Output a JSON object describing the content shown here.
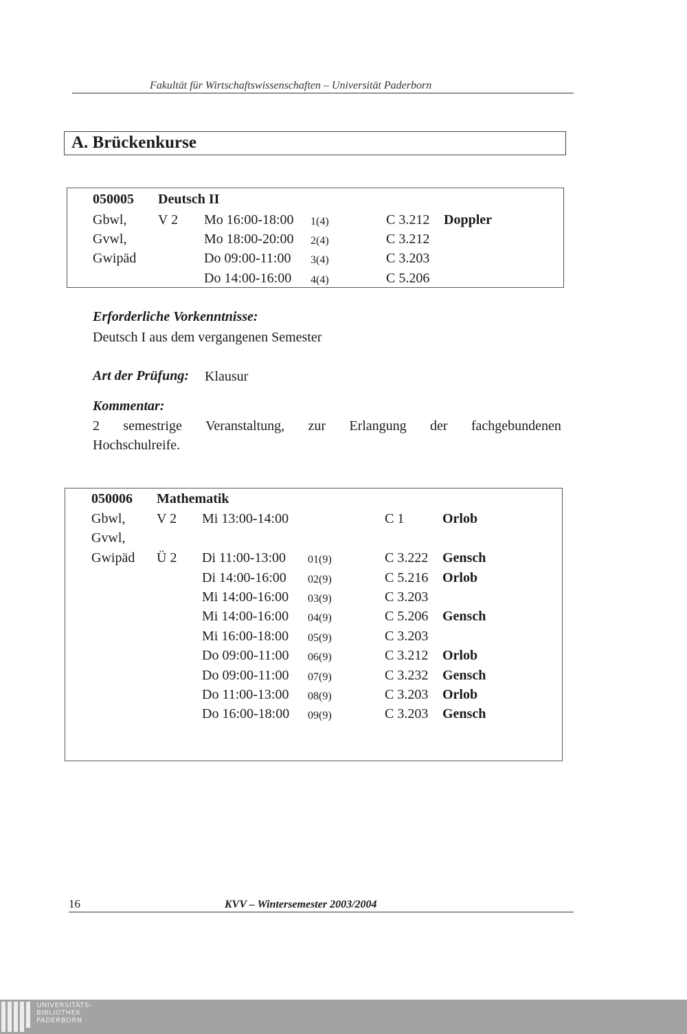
{
  "header": {
    "text": "Fakultät für Wirtschaftswissenschaften – Universität Paderborn"
  },
  "section": {
    "title": "A. Brückenkurse"
  },
  "course1": {
    "number": "050005",
    "title": "Deutsch II",
    "rows": [
      {
        "audience": "Gbwl,",
        "type": "V 2",
        "time": "Mo 16:00-18:00",
        "group": "1(4)",
        "room": "C 3.212",
        "lecturer": "Doppler"
      },
      {
        "audience": "Gvwl,",
        "type": "",
        "time": "Mo 18:00-20:00",
        "group": "2(4)",
        "room": "C 3.212",
        "lecturer": ""
      },
      {
        "audience": "Gwipäd",
        "type": "",
        "time": "Do 09:00-11:00",
        "group": "3(4)",
        "room": "C 3.203",
        "lecturer": ""
      },
      {
        "audience": "",
        "type": "",
        "time": "Do 14:00-16:00",
        "group": "4(4)",
        "room": "C 5.206",
        "lecturer": ""
      }
    ],
    "prereq_label": "Erforderliche Vorkenntnisse:",
    "prereq_text": "Deutsch I aus dem vergangenen Semester",
    "exam_label": "Art der Prüfung:",
    "exam_text": "Klausur",
    "comment_label": "Kommentar:",
    "comment_line1": [
      "2",
      "semestrige",
      "Veranstaltung,",
      "zur",
      "Erlangung",
      "der",
      "fachgebundenen"
    ],
    "comment_line2": "Hochschulreife."
  },
  "course2": {
    "number": "050006",
    "title": "Mathematik",
    "rows": [
      {
        "audience": "Gbwl,",
        "type": "V 2",
        "time": "Mi 13:00-14:00",
        "group": "",
        "room": "C 1",
        "lecturer": "Orlob"
      },
      {
        "audience": "Gvwl,",
        "type": "",
        "time": "",
        "group": "",
        "room": "",
        "lecturer": ""
      },
      {
        "audience": "Gwipäd",
        "type": "Ü 2",
        "time": "Di 11:00-13:00",
        "group": "01(9)",
        "room": "C 3.222",
        "lecturer": "Gensch"
      },
      {
        "audience": "",
        "type": "",
        "time": "Di 14:00-16:00",
        "group": "02(9)",
        "room": "C 5.216",
        "lecturer": "Orlob"
      },
      {
        "audience": "",
        "type": "",
        "time": "Mi 14:00-16:00",
        "group": "03(9)",
        "room": "C 3.203",
        "lecturer": ""
      },
      {
        "audience": "",
        "type": "",
        "time": "Mi 14:00-16:00",
        "group": "04(9)",
        "room": "C 5.206",
        "lecturer": "Gensch"
      },
      {
        "audience": "",
        "type": "",
        "time": "Mi 16:00-18:00",
        "group": "05(9)",
        "room": "C 3.203",
        "lecturer": ""
      },
      {
        "audience": "",
        "type": "",
        "time": "Do 09:00-11:00",
        "group": "06(9)",
        "room": "C 3.212",
        "lecturer": "Orlob"
      },
      {
        "audience": "",
        "type": "",
        "time": "Do 09:00-11:00",
        "group": "07(9)",
        "room": "C 3.232",
        "lecturer": "Gensch"
      },
      {
        "audience": "",
        "type": "",
        "time": "Do 11:00-13:00",
        "group": "08(9)",
        "room": "C 3.203",
        "lecturer": "Orlob"
      },
      {
        "audience": "",
        "type": "",
        "time": "Do 16:00-18:00",
        "group": "09(9)",
        "room": "C 3.203",
        "lecturer": "Gensch"
      }
    ]
  },
  "footer": {
    "page_number": "16",
    "text": "KVV – Wintersemester 2003/2004"
  },
  "logo": {
    "line1": "UNIVERSITÄTS-",
    "line2": "BIBLIOTHEK",
    "line3": "PADERBORN"
  }
}
